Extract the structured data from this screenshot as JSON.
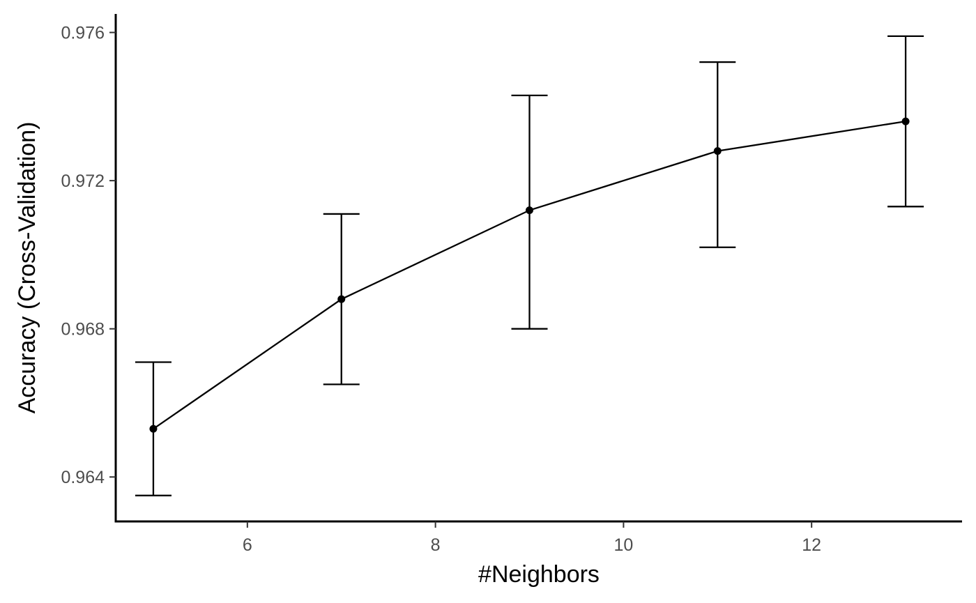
{
  "chart_data": {
    "type": "line",
    "xlabel": "#Neighbors",
    "ylabel": "Accuracy (Cross-Validation)",
    "xlim": [
      4.6,
      13.6
    ],
    "ylim": [
      0.9628,
      0.9765
    ],
    "x_ticks": [
      6,
      8,
      10,
      12
    ],
    "x_tick_labels": [
      "6",
      "8",
      "10",
      "12"
    ],
    "y_ticks": [
      0.964,
      0.968,
      0.972,
      0.976
    ],
    "y_tick_labels": [
      "0.964",
      "0.968",
      "0.972",
      "0.976"
    ],
    "grid": false,
    "legend": "none",
    "series": [
      {
        "x": [
          5,
          7,
          9,
          11,
          13
        ],
        "y": [
          0.9653,
          0.9688,
          0.9712,
          0.9728,
          0.9736
        ],
        "error_lower": [
          0.9635,
          0.9665,
          0.968,
          0.9702,
          0.9713
        ],
        "error_upper": [
          0.9671,
          0.9711,
          0.9743,
          0.9752,
          0.9759
        ],
        "color": "#000000"
      }
    ]
  }
}
